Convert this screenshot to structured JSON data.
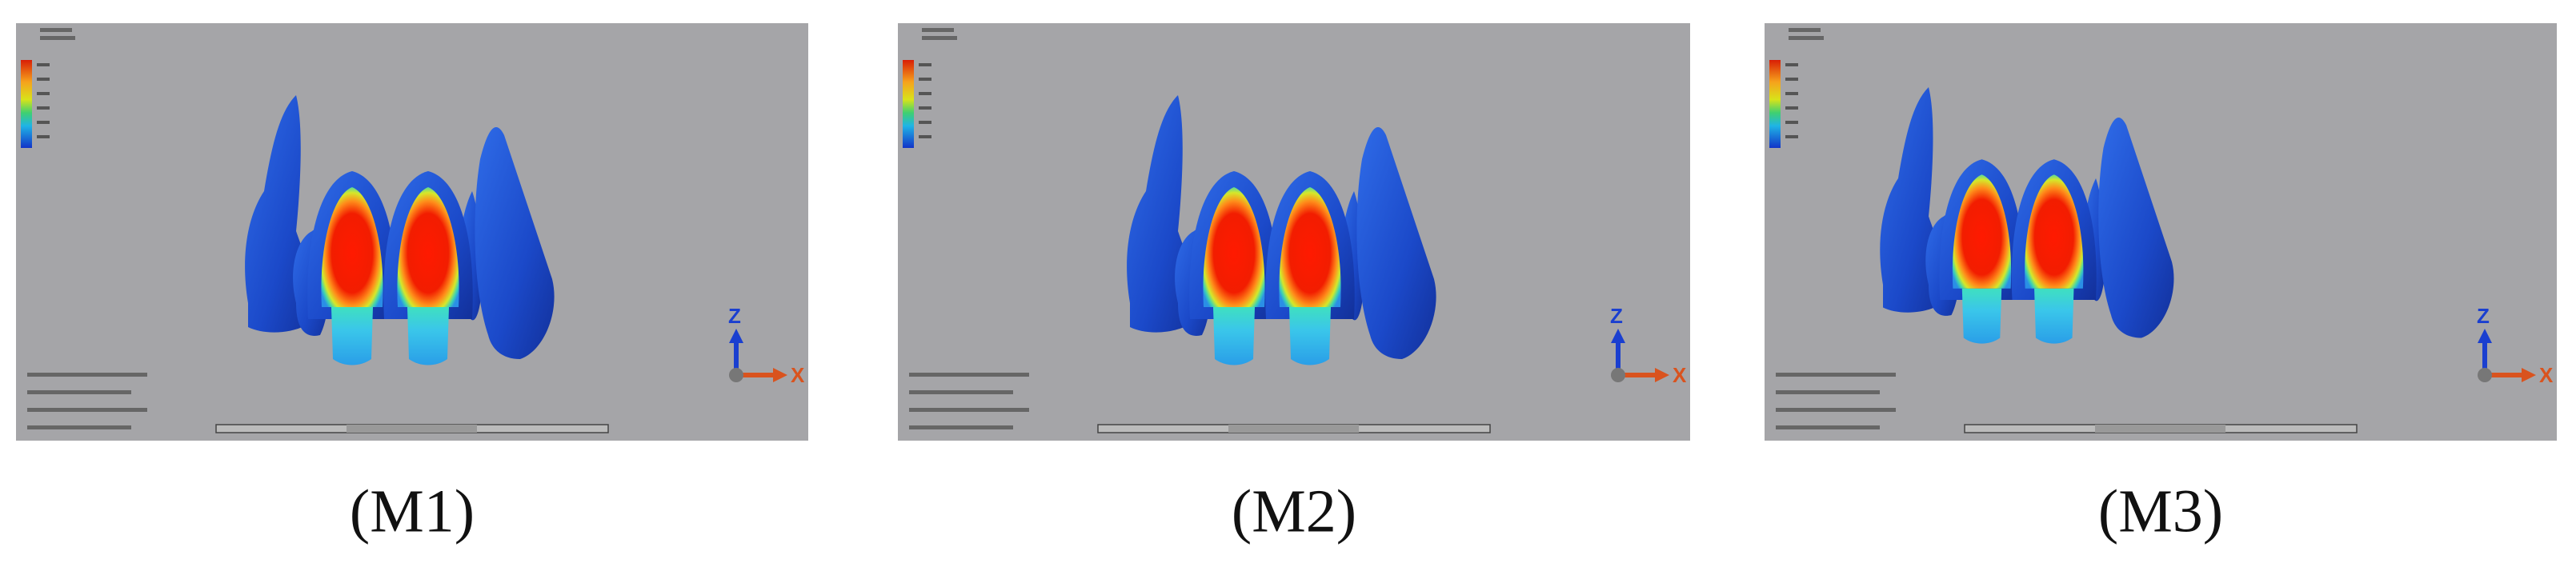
{
  "panels": [
    {
      "caption": "(M1)",
      "axis_z": "Z",
      "axis_x": "X"
    },
    {
      "caption": "(M2)",
      "axis_z": "Z",
      "axis_x": "X"
    },
    {
      "caption": "(M3)",
      "axis_z": "Z",
      "axis_x": "X"
    }
  ]
}
